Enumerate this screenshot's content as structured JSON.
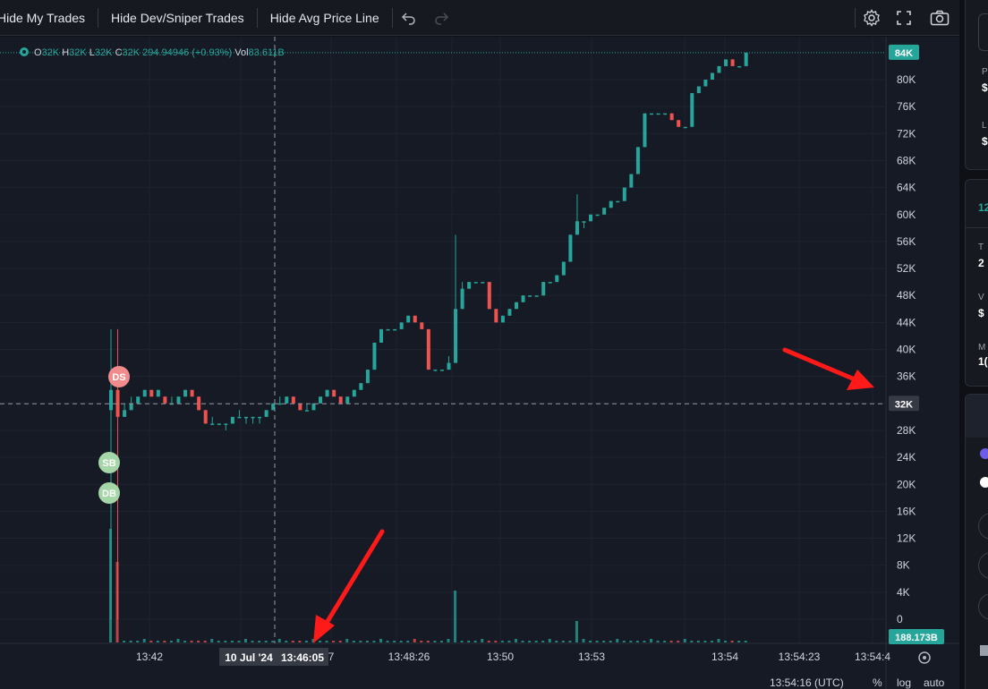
{
  "toolbar": {
    "hide_my_trades": "Hide My Trades",
    "hide_dev_sniper": "Hide Dev/Sniper Trades",
    "hide_avg_price": "Hide Avg Price Line"
  },
  "legend": {
    "o_label": "O",
    "o_value": "32K",
    "h_label": "H",
    "h_value": "32K",
    "l_label": "L",
    "l_value": "32K",
    "c_label": "C",
    "c_value": "32K",
    "price": "294.94946",
    "change": "(+0.93%)",
    "vol_label": "Vol",
    "vol_value": "83.611B"
  },
  "price_axis": {
    "ticks": [
      "80K",
      "76K",
      "72K",
      "68K",
      "64K",
      "60K",
      "56K",
      "52K",
      "48K",
      "44K",
      "40K",
      "36K",
      "32K",
      "28K",
      "24K",
      "20K",
      "16K",
      "12K",
      "8K",
      "4K",
      "0"
    ],
    "current_price_badge": "84K",
    "crosshair_price_badge": "32K",
    "volume_badge": "188.173B"
  },
  "time_axis": {
    "ticks": [
      "13:42",
      "7",
      "13:48:26",
      "13:50",
      "13:53",
      "13:54",
      "13:54:23",
      "13:54:4"
    ],
    "crosshair_date": "10 Jul '24",
    "crosshair_time": "13:46:05",
    "footer_time": "13:54:16 (UTC)",
    "percent_toggle": "%",
    "log_toggle": "log",
    "auto_toggle": "auto"
  },
  "markers": [
    {
      "label": "DS",
      "color": "#f28b8b"
    },
    {
      "label": "SB",
      "color": "#a5d6a7"
    },
    {
      "label": "DB",
      "color": "#a5d6a7"
    }
  ],
  "side_panel": {
    "label_p": "P",
    "value_p": "$",
    "label_l": "L",
    "value_l": "$",
    "count": "12",
    "label_t": "T",
    "value_t": "2",
    "label_v": "V",
    "value_v": "$",
    "label_m": "M",
    "value_m": "1("
  },
  "colors": {
    "up": "#26a69a",
    "down": "#ef5350",
    "background": "#161a25",
    "annotation_arrow": "#ff1a1a"
  },
  "chart_data": {
    "type": "candlestick",
    "y_unit": "K",
    "ylim": [
      0,
      84
    ],
    "candles": [
      {
        "o": 31,
        "h": 43,
        "l": 0,
        "c": 34
      },
      {
        "o": 34,
        "h": 43,
        "l": 0,
        "c": 30
      },
      {
        "o": 30,
        "h": 32,
        "l": 30,
        "c": 31
      },
      {
        "o": 31,
        "h": 33,
        "l": 31,
        "c": 32
      },
      {
        "o": 32,
        "h": 33,
        "l": 32,
        "c": 33
      },
      {
        "o": 33,
        "h": 34,
        "l": 33,
        "c": 34
      },
      {
        "o": 34,
        "h": 34,
        "l": 33,
        "c": 33
      },
      {
        "o": 33,
        "h": 34,
        "l": 33,
        "c": 34
      },
      {
        "o": 33,
        "h": 33,
        "l": 32,
        "c": 32
      },
      {
        "o": 32,
        "h": 33,
        "l": 32,
        "c": 32
      },
      {
        "o": 32,
        "h": 33,
        "l": 32,
        "c": 33
      },
      {
        "o": 33,
        "h": 34,
        "l": 33,
        "c": 34
      },
      {
        "o": 34,
        "h": 34,
        "l": 33,
        "c": 33
      },
      {
        "o": 33,
        "h": 33,
        "l": 31,
        "c": 31
      },
      {
        "o": 31,
        "h": 31,
        "l": 29,
        "c": 29
      },
      {
        "o": 29,
        "h": 30,
        "l": 29,
        "c": 29
      },
      {
        "o": 29,
        "h": 29,
        "l": 29,
        "c": 29
      },
      {
        "o": 29,
        "h": 29,
        "l": 28,
        "c": 29
      },
      {
        "o": 29,
        "h": 30,
        "l": 29,
        "c": 30
      },
      {
        "o": 30,
        "h": 31,
        "l": 30,
        "c": 30
      },
      {
        "o": 30,
        "h": 30,
        "l": 29,
        "c": 30
      },
      {
        "o": 30,
        "h": 30,
        "l": 29,
        "c": 30
      },
      {
        "o": 30,
        "h": 30,
        "l": 29,
        "c": 30
      },
      {
        "o": 30,
        "h": 31,
        "l": 30,
        "c": 31
      },
      {
        "o": 31,
        "h": 32,
        "l": 31,
        "c": 32
      },
      {
        "o": 32,
        "h": 33,
        "l": 32,
        "c": 32
      },
      {
        "o": 32,
        "h": 33,
        "l": 32,
        "c": 33
      },
      {
        "o": 33,
        "h": 33,
        "l": 32,
        "c": 32
      },
      {
        "o": 32,
        "h": 32,
        "l": 31,
        "c": 31
      },
      {
        "o": 31,
        "h": 32,
        "l": 31,
        "c": 31
      },
      {
        "o": 31,
        "h": 32,
        "l": 31,
        "c": 32
      },
      {
        "o": 32,
        "h": 33,
        "l": 32,
        "c": 33
      },
      {
        "o": 33,
        "h": 34,
        "l": 33,
        "c": 34
      },
      {
        "o": 34,
        "h": 34,
        "l": 33,
        "c": 33
      },
      {
        "o": 33,
        "h": 33,
        "l": 32,
        "c": 32
      },
      {
        "o": 32,
        "h": 33,
        "l": 32,
        "c": 33
      },
      {
        "o": 33,
        "h": 34,
        "l": 33,
        "c": 34
      },
      {
        "o": 34,
        "h": 35,
        "l": 34,
        "c": 35
      },
      {
        "o": 35,
        "h": 37,
        "l": 35,
        "c": 37
      },
      {
        "o": 37,
        "h": 41,
        "l": 37,
        "c": 41
      },
      {
        "o": 41,
        "h": 43,
        "l": 41,
        "c": 43
      },
      {
        "o": 43,
        "h": 43,
        "l": 43,
        "c": 43
      },
      {
        "o": 43,
        "h": 43,
        "l": 43,
        "c": 43
      },
      {
        "o": 43,
        "h": 44,
        "l": 43,
        "c": 44
      },
      {
        "o": 44,
        "h": 45,
        "l": 44,
        "c": 45
      },
      {
        "o": 45,
        "h": 45,
        "l": 44,
        "c": 44
      },
      {
        "o": 44,
        "h": 44,
        "l": 43,
        "c": 43
      },
      {
        "o": 43,
        "h": 43,
        "l": 37,
        "c": 37
      },
      {
        "o": 37,
        "h": 37,
        "l": 37,
        "c": 37
      },
      {
        "o": 37,
        "h": 37,
        "l": 37,
        "c": 37
      },
      {
        "o": 37,
        "h": 39,
        "l": 37,
        "c": 38
      },
      {
        "o": 38,
        "h": 57,
        "l": 38,
        "c": 46
      },
      {
        "o": 46,
        "h": 50,
        "l": 46,
        "c": 49
      },
      {
        "o": 49,
        "h": 50,
        "l": 49,
        "c": 50
      },
      {
        "o": 50,
        "h": 50,
        "l": 50,
        "c": 50
      },
      {
        "o": 50,
        "h": 50,
        "l": 50,
        "c": 50
      },
      {
        "o": 50,
        "h": 50,
        "l": 46,
        "c": 46
      },
      {
        "o": 46,
        "h": 46,
        "l": 44,
        "c": 44
      },
      {
        "o": 44,
        "h": 45,
        "l": 44,
        "c": 45
      },
      {
        "o": 45,
        "h": 46,
        "l": 45,
        "c": 46
      },
      {
        "o": 46,
        "h": 47,
        "l": 46,
        "c": 47
      },
      {
        "o": 47,
        "h": 48,
        "l": 47,
        "c": 48
      },
      {
        "o": 48,
        "h": 48,
        "l": 48,
        "c": 48
      },
      {
        "o": 48,
        "h": 48,
        "l": 48,
        "c": 48
      },
      {
        "o": 48,
        "h": 50,
        "l": 48,
        "c": 50
      },
      {
        "o": 50,
        "h": 50,
        "l": 50,
        "c": 50
      },
      {
        "o": 50,
        "h": 51,
        "l": 50,
        "c": 51
      },
      {
        "o": 51,
        "h": 53,
        "l": 51,
        "c": 53
      },
      {
        "o": 53,
        "h": 57,
        "l": 53,
        "c": 57
      },
      {
        "o": 57,
        "h": 63,
        "l": 57,
        "c": 59
      },
      {
        "o": 59,
        "h": 59,
        "l": 58,
        "c": 59
      },
      {
        "o": 59,
        "h": 60,
        "l": 59,
        "c": 60
      },
      {
        "o": 60,
        "h": 60,
        "l": 60,
        "c": 60
      },
      {
        "o": 60,
        "h": 61,
        "l": 60,
        "c": 61
      },
      {
        "o": 61,
        "h": 62,
        "l": 61,
        "c": 62
      },
      {
        "o": 62,
        "h": 62,
        "l": 62,
        "c": 62
      },
      {
        "o": 62,
        "h": 64,
        "l": 62,
        "c": 64
      },
      {
        "o": 64,
        "h": 66,
        "l": 64,
        "c": 66
      },
      {
        "o": 66,
        "h": 70,
        "l": 66,
        "c": 70
      },
      {
        "o": 70,
        "h": 75,
        "l": 70,
        "c": 75
      },
      {
        "o": 75,
        "h": 75,
        "l": 75,
        "c": 75
      },
      {
        "o": 75,
        "h": 75,
        "l": 75,
        "c": 75
      },
      {
        "o": 75,
        "h": 75,
        "l": 75,
        "c": 75
      },
      {
        "o": 75,
        "h": 75,
        "l": 74,
        "c": 74
      },
      {
        "o": 74,
        "h": 74,
        "l": 73,
        "c": 73
      },
      {
        "o": 73,
        "h": 73,
        "l": 73,
        "c": 73
      },
      {
        "o": 73,
        "h": 78,
        "l": 73,
        "c": 78
      },
      {
        "o": 78,
        "h": 79,
        "l": 78,
        "c": 79
      },
      {
        "o": 79,
        "h": 80,
        "l": 79,
        "c": 80
      },
      {
        "o": 80,
        "h": 81,
        "l": 80,
        "c": 81
      },
      {
        "o": 81,
        "h": 82,
        "l": 81,
        "c": 82
      },
      {
        "o": 82,
        "h": 83,
        "l": 82,
        "c": 83
      },
      {
        "o": 83,
        "h": 83,
        "l": 82,
        "c": 82
      },
      {
        "o": 82,
        "h": 82,
        "l": 82,
        "c": 82
      },
      {
        "o": 82,
        "h": 84,
        "l": 82,
        "c": 84
      }
    ]
  }
}
